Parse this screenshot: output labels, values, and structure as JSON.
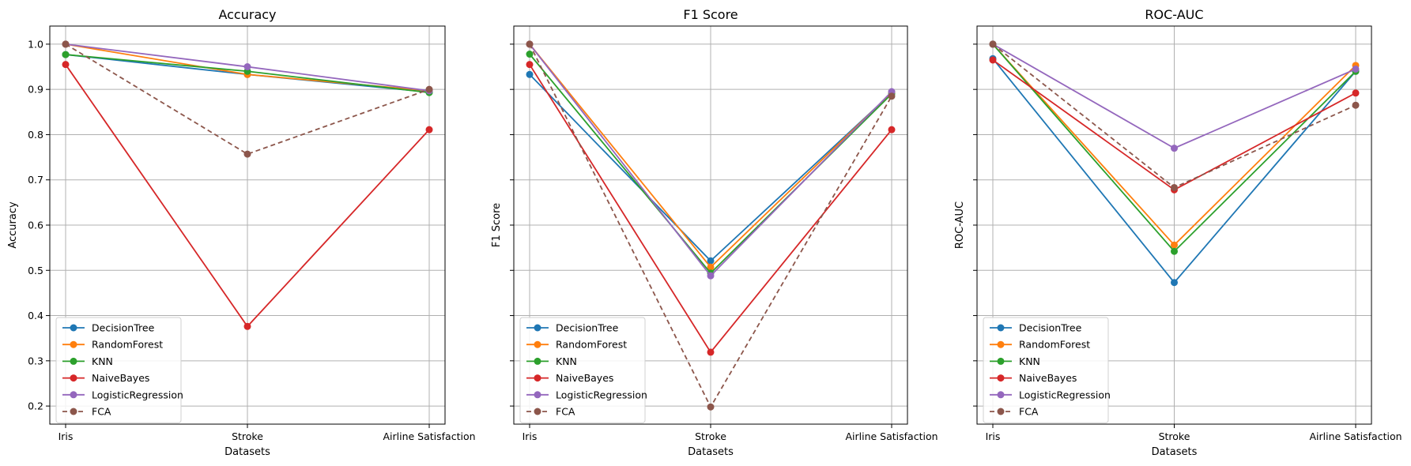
{
  "chart_data": {
    "type": "line",
    "categories": [
      "Iris",
      "Stroke",
      "Airline Satisfaction"
    ],
    "xlabel": "Datasets",
    "ylim": [
      0.16,
      1.04
    ],
    "yticks": [
      "0.2",
      "0.3",
      "0.4",
      "0.5",
      "0.6",
      "0.7",
      "0.8",
      "0.9",
      "1.0"
    ],
    "grid": true,
    "legend_position": "lower-left",
    "colors": {
      "DecisionTree": "#1f77b4",
      "RandomForest": "#ff7f0e",
      "KNN": "#2ca02c",
      "NaiveBayes": "#d62728",
      "LogisticRegression": "#9467bd",
      "FCA": "#8c564b"
    },
    "panels": [
      {
        "title": "Accuracy",
        "ylabel": "Accuracy",
        "series": [
          {
            "name": "DecisionTree",
            "values": [
              0.977,
              0.933,
              0.894
            ],
            "dashed": false
          },
          {
            "name": "RandomForest",
            "values": [
              1.0,
              0.933,
              0.897
            ],
            "dashed": false
          },
          {
            "name": "KNN",
            "values": [
              0.977,
              0.94,
              0.893
            ],
            "dashed": false
          },
          {
            "name": "NaiveBayes",
            "values": [
              0.955,
              0.376,
              0.811
            ],
            "dashed": false
          },
          {
            "name": "LogisticRegression",
            "values": [
              1.0,
              0.95,
              0.897
            ],
            "dashed": false
          },
          {
            "name": "FCA",
            "values": [
              1.0,
              0.757,
              0.9
            ],
            "dashed": true
          }
        ]
      },
      {
        "title": "F1 Score",
        "ylabel": "F1 Score",
        "series": [
          {
            "name": "DecisionTree",
            "values": [
              0.933,
              0.521,
              0.892
            ],
            "dashed": false
          },
          {
            "name": "RandomForest",
            "values": [
              1.0,
              0.507,
              0.893
            ],
            "dashed": false
          },
          {
            "name": "KNN",
            "values": [
              0.978,
              0.494,
              0.89
            ],
            "dashed": false
          },
          {
            "name": "NaiveBayes",
            "values": [
              0.955,
              0.319,
              0.811
            ],
            "dashed": false
          },
          {
            "name": "LogisticRegression",
            "values": [
              1.0,
              0.488,
              0.895
            ],
            "dashed": false
          },
          {
            "name": "FCA",
            "values": [
              1.0,
              0.198,
              0.885
            ],
            "dashed": true
          }
        ]
      },
      {
        "title": "ROC-AUC",
        "ylabel": "ROC-AUC",
        "series": [
          {
            "name": "DecisionTree",
            "values": [
              0.968,
              0.473,
              0.94
            ],
            "dashed": false
          },
          {
            "name": "RandomForest",
            "values": [
              1.0,
              0.556,
              0.953
            ],
            "dashed": false
          },
          {
            "name": "KNN",
            "values": [
              1.0,
              0.542,
              0.94
            ],
            "dashed": false
          },
          {
            "name": "NaiveBayes",
            "values": [
              0.965,
              0.678,
              0.892
            ],
            "dashed": false
          },
          {
            "name": "LogisticRegression",
            "values": [
              1.0,
              0.77,
              0.945
            ],
            "dashed": false
          },
          {
            "name": "FCA",
            "values": [
              1.0,
              0.683,
              0.865
            ],
            "dashed": true
          }
        ]
      }
    ]
  }
}
